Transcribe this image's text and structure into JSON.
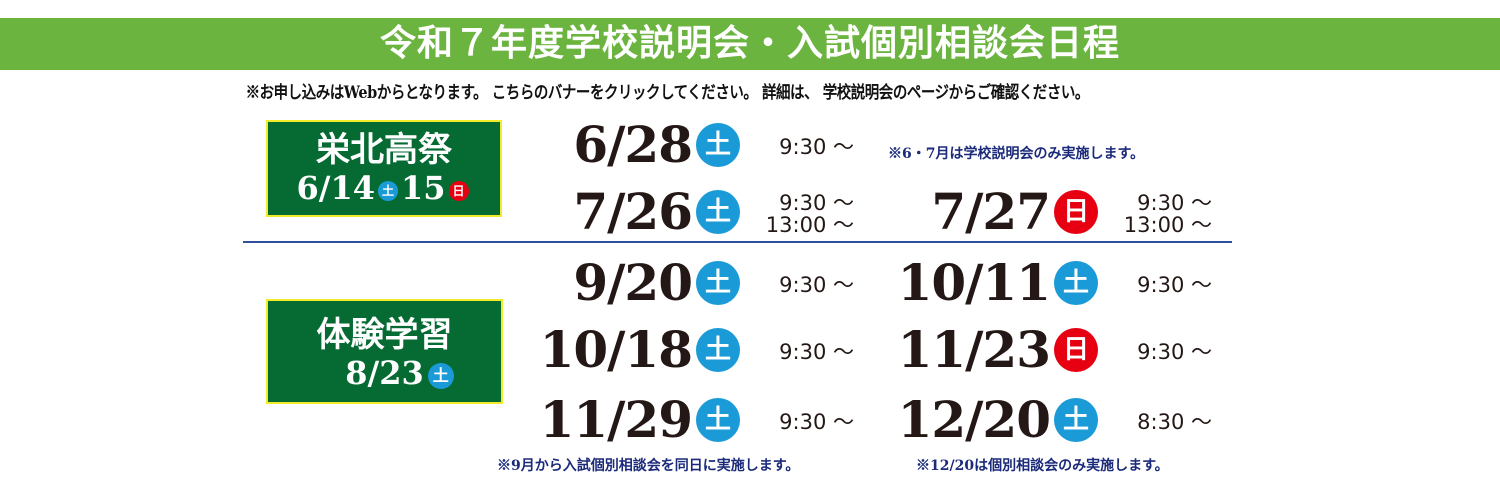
{
  "title": "令和７年度学校説明会・入試個別相談会日程",
  "notice": "※お申し込みはWebからとなります。 こちらのバナーをクリックしてください。 詳細は、 学校説明会のページからご確認ください。",
  "colors": {
    "title_bg": "#6cb440",
    "box_bg": "#066a33",
    "saturday": "#1a9ad6",
    "sunday": "#e60012",
    "note_text": "#1b2a7a"
  },
  "events": [
    {
      "name": "栄北高祭",
      "date1": "6/14",
      "day1": "土",
      "date2": "15",
      "day2": "日"
    },
    {
      "name": "体験学習",
      "date1": "8/23",
      "day1": "土"
    }
  ],
  "sessions": [
    {
      "date": "6/28",
      "day": "土",
      "times": [
        "9:30 ～"
      ]
    },
    {
      "date": "7/26",
      "day": "土",
      "times": [
        "9:30 ～",
        "13:00 ～"
      ]
    },
    {
      "date": "7/27",
      "day": "日",
      "times": [
        "9:30 ～",
        "13:00 ～"
      ]
    },
    {
      "date": "9/20",
      "day": "土",
      "times": [
        "9:30 ～"
      ]
    },
    {
      "date": "10/11",
      "day": "土",
      "times": [
        "9:30 ～"
      ]
    },
    {
      "date": "10/18",
      "day": "土",
      "times": [
        "9:30 ～"
      ]
    },
    {
      "date": "11/23",
      "day": "日",
      "times": [
        "9:30 ～"
      ]
    },
    {
      "date": "11/29",
      "day": "土",
      "times": [
        "9:30 ～"
      ]
    },
    {
      "date": "12/20",
      "day": "土",
      "times": [
        "8:30 ～"
      ]
    }
  ],
  "notes": {
    "june_july": "※6・7月は学校説明会のみ実施します。",
    "september": "※9月から入試個別相談会を同日に実施します。",
    "december": "※12/20は個別相談会のみ実施します。"
  }
}
